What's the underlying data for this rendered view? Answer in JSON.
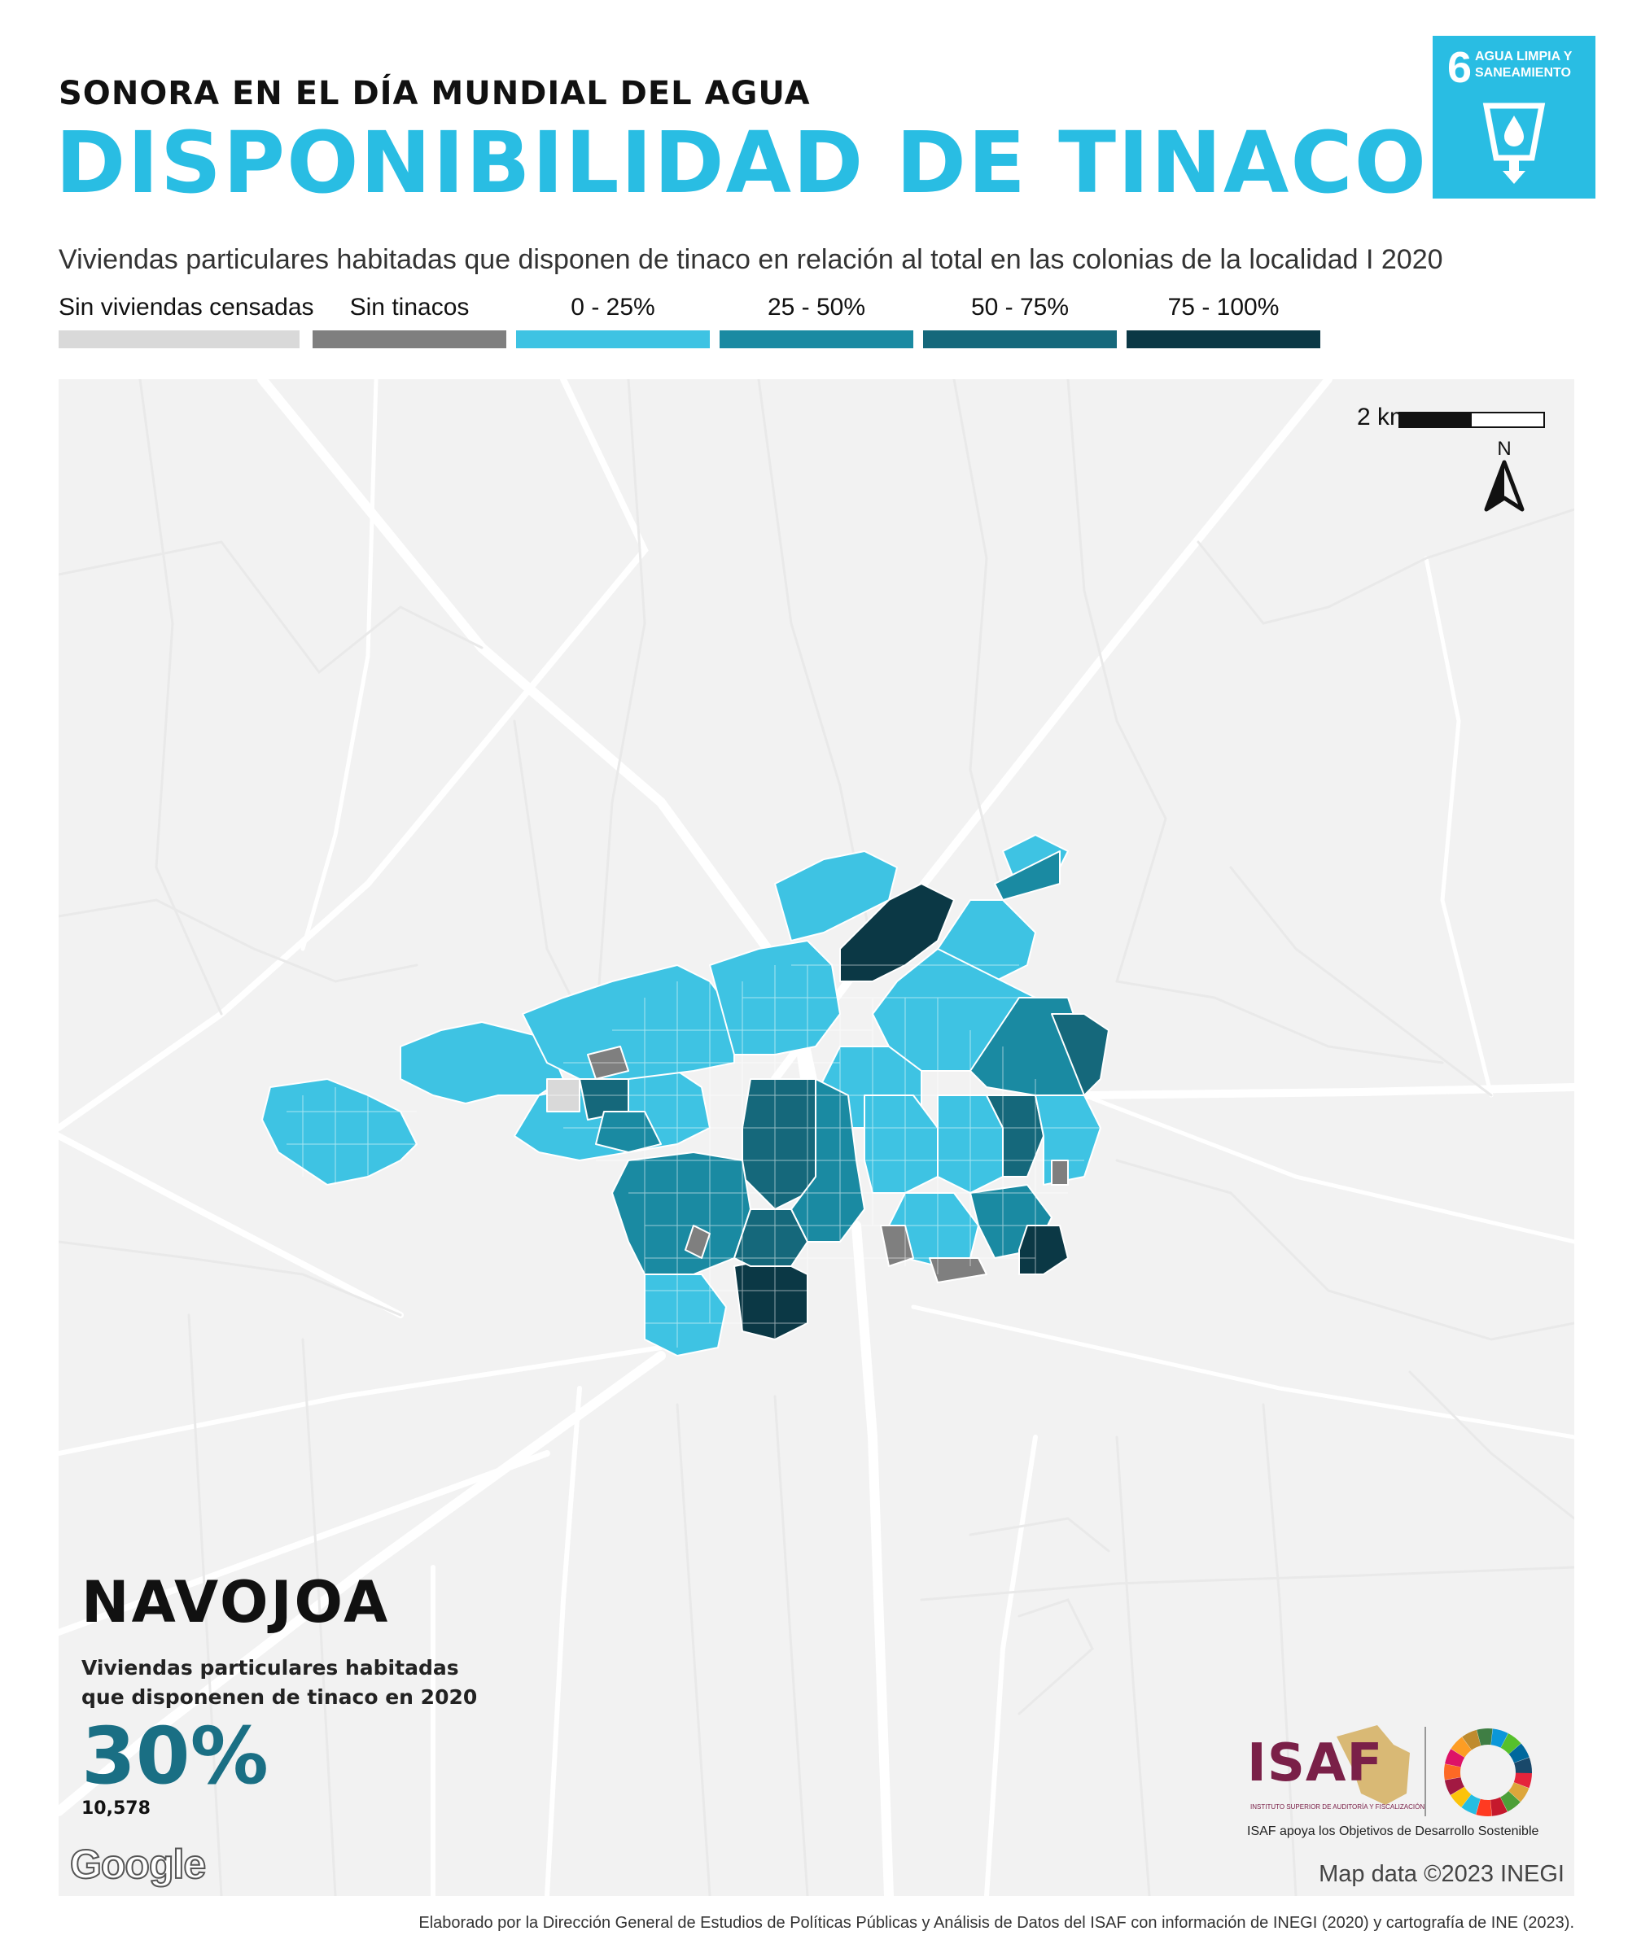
{
  "header": {
    "kicker": "SONORA EN EL DÍA MUNDIAL DEL AGUA",
    "title": "DISPONIBILIDAD DE TINACOS",
    "subtitle": "Viviendas particulares habitadas que disponen de tinaco en relación al total en las colonias de la localidad I 2020"
  },
  "sdg_badge": {
    "number": "6",
    "label": "AGUA LIMPIA Y SANEAMIENTO",
    "icon": "water-glass-icon",
    "color": "#29bde3"
  },
  "legend": [
    {
      "label": "Sin viviendas censadas",
      "color": "#d9d9d9"
    },
    {
      "label": "Sin tinacos",
      "color": "#7f7f7f"
    },
    {
      "label": "0 - 25%",
      "color": "#3ec3e3"
    },
    {
      "label": "25 - 50%",
      "color": "#1a8aa2"
    },
    {
      "label": "50 - 75%",
      "color": "#15687b"
    },
    {
      "label": "75 - 100%",
      "color": "#0b3845"
    }
  ],
  "map": {
    "scale_label": "2 km",
    "north_label": "N",
    "attribution": "Map data ©2023 INEGI",
    "provider": "Google"
  },
  "city": {
    "name": "NAVOJOA",
    "description_line1": "Viviendas particulares habitadas",
    "description_line2": "que disponenen de tinaco en 2020",
    "percentage": "30%",
    "count": "10,578"
  },
  "logos": {
    "isaf": "ISAF",
    "isaf_subtitle": "INSTITUTO SUPERIOR DE AUDITORÍA Y FISCALIZACIÓN",
    "caption": "ISAF apoya los Objetivos de Desarrollo Sostenible",
    "sdg_wheel": "sdg-wheel-icon"
  },
  "credit": "Elaborado por la Dirección General de Estudios de Políticas Públicas y Análisis de Datos del ISAF con información de INEGI (2020) y cartografía de INE (2023)."
}
